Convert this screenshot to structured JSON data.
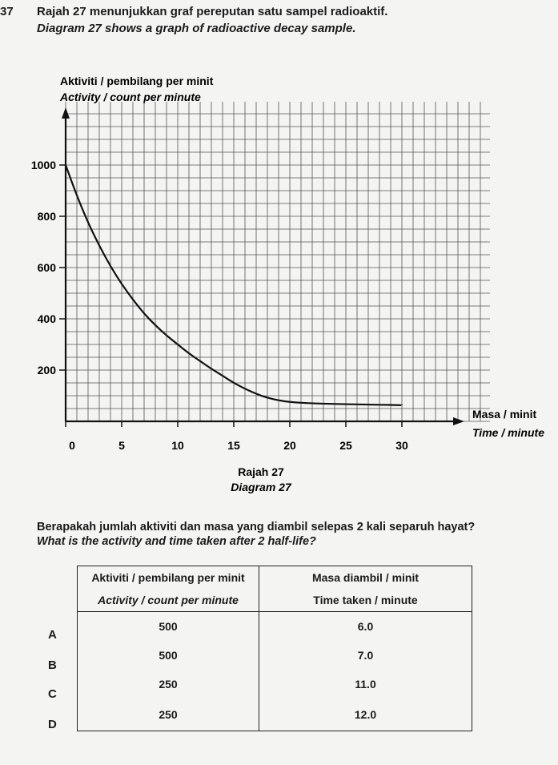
{
  "question": {
    "number": "37",
    "line_malay": "Rajah 27 menunjukkan graf pereputan satu sampel radioaktif.",
    "line_english": "Diagram 27 shows a graph of radioactive decay sample."
  },
  "chart_data": {
    "type": "line",
    "ylabel_malay": "Aktiviti / pembilang per minit",
    "ylabel_english": "Activity / count per minute",
    "xlabel_malay": "Masa / minit",
    "xlabel_english": "Time / minute",
    "x_ticks": [
      "0",
      "5",
      "10",
      "15",
      "20",
      "25",
      "30"
    ],
    "y_ticks": [
      "200",
      "400",
      "600",
      "800",
      "1000"
    ],
    "xlim": [
      0,
      33
    ],
    "ylim": [
      0,
      1200
    ],
    "grid": true,
    "series": [
      {
        "x": [
          0,
          1,
          2,
          3,
          4,
          5,
          6,
          7,
          8,
          9,
          10,
          11,
          12,
          13,
          14,
          15,
          16,
          17,
          18,
          19,
          20,
          22,
          24,
          26,
          28,
          30
        ],
        "values": [
          1000,
          880,
          775,
          685,
          605,
          535,
          475,
          420,
          375,
          335,
          300,
          265,
          235,
          205,
          178,
          150,
          127,
          107,
          92,
          82,
          75,
          70,
          68,
          66,
          65,
          63
        ]
      }
    ],
    "caption_malay": "Rajah 27",
    "caption_english": "Diagram 27"
  },
  "question2": {
    "line_malay": "Berapakah jumlah aktiviti dan masa yang diambil selepas 2 kali separuh hayat?",
    "line_english": "What is the activity and time taken after 2 half-life?"
  },
  "options_table": {
    "header_col1_malay": "Aktiviti / pembilang per minit",
    "header_col1_english": "Activity / count per minute",
    "header_col2_malay": "Masa diambil / minit",
    "header_col2_english": "Time taken / minute",
    "rows": [
      {
        "letter": "A",
        "activity": "500",
        "time": "6.0"
      },
      {
        "letter": "B",
        "activity": "500",
        "time": "7.0"
      },
      {
        "letter": "C",
        "activity": "250",
        "time": "11.0"
      },
      {
        "letter": "D",
        "activity": "250",
        "time": "12.0"
      }
    ]
  }
}
